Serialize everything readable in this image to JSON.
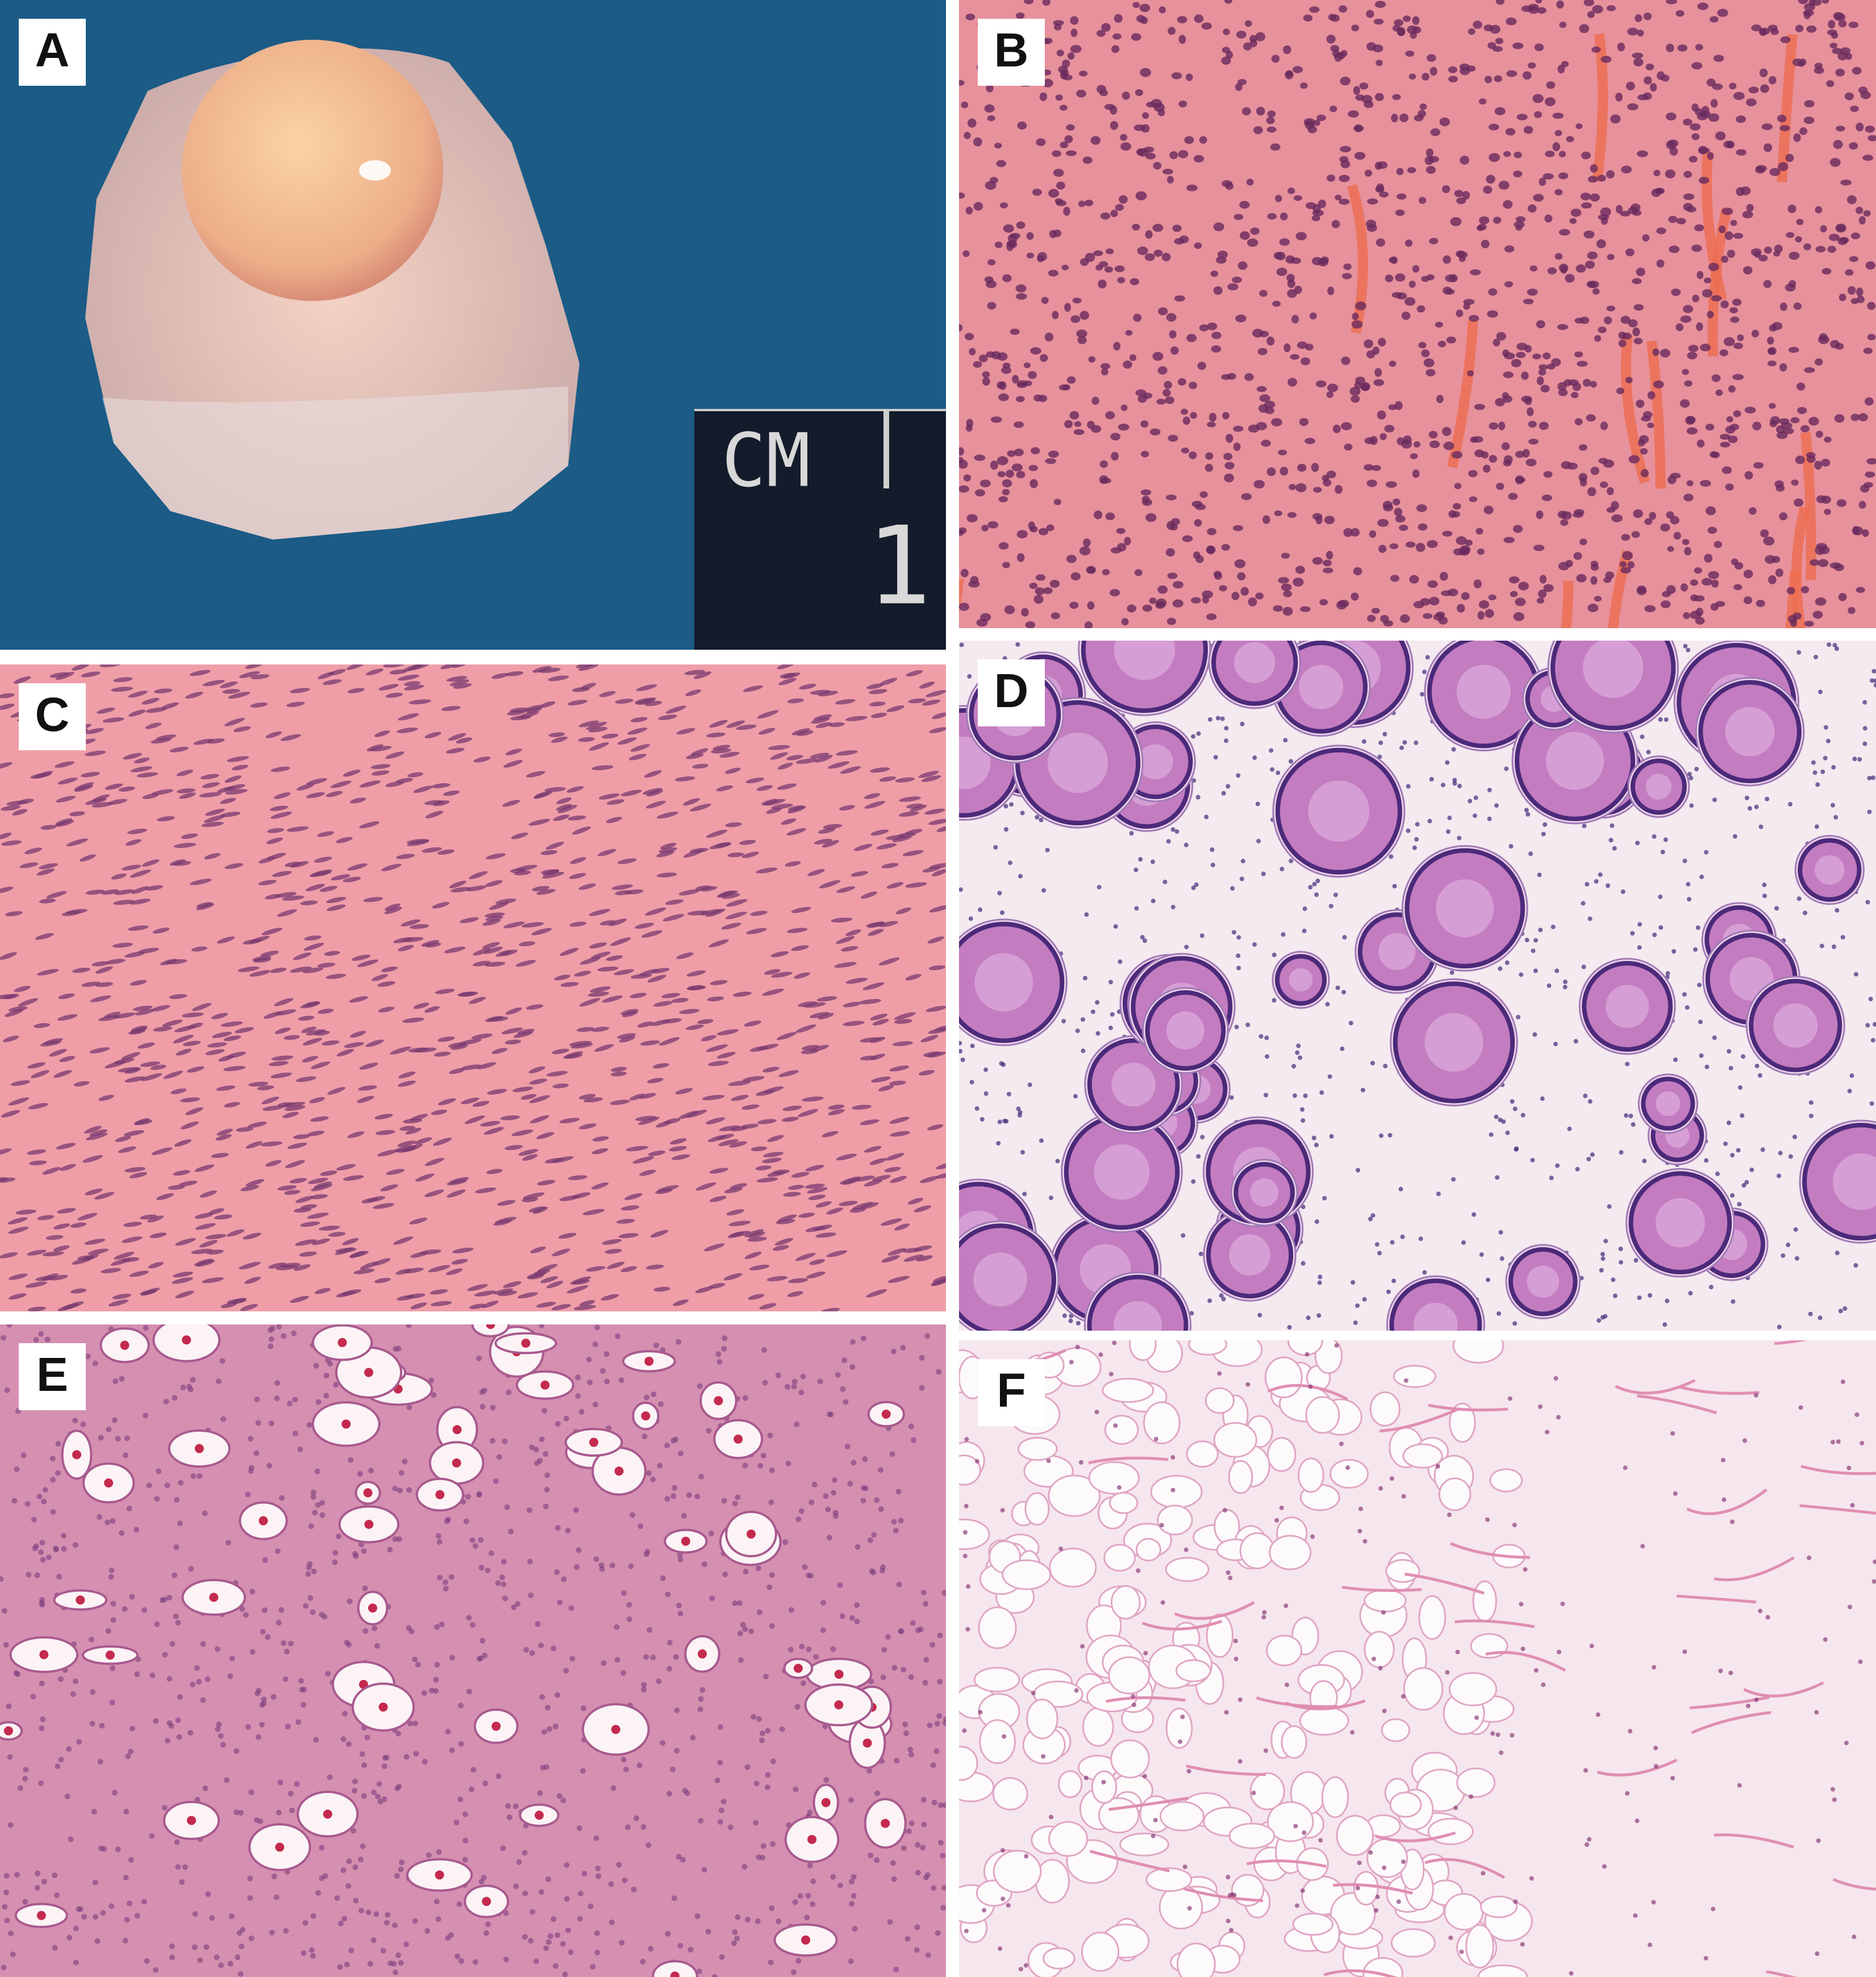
{
  "panels": [
    {
      "label": "A"
    },
    {
      "label": "B"
    },
    {
      "label": "C"
    },
    {
      "label": "D"
    },
    {
      "label": "E"
    },
    {
      "label": "F"
    }
  ],
  "scale_bar": {
    "unit": "CM",
    "number": "1"
  }
}
